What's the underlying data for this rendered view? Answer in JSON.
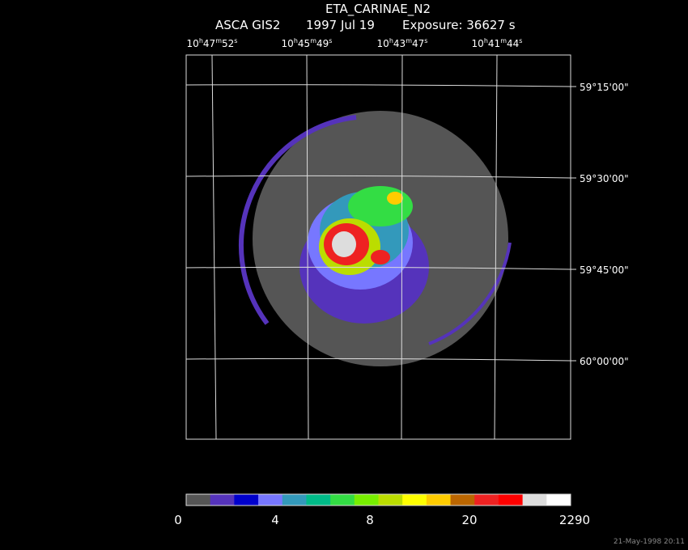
{
  "header": {
    "title": "ETA_CARINAE_N2",
    "instrument": "ASCA GIS2",
    "date": "1997 Jul 19",
    "exposure": "Exposure: 36627 s"
  },
  "ra_labels": [
    [
      "10",
      "h",
      "47",
      "m",
      "52",
      "s"
    ],
    [
      "10",
      "h",
      "45",
      "m",
      "49",
      "s"
    ],
    [
      "10",
      "h",
      "43",
      "m",
      "47",
      "s"
    ],
    [
      "10",
      "h",
      "41",
      "m",
      "44",
      "s"
    ]
  ],
  "dec_labels": [
    "59°15'00\"",
    "59°30'00\"",
    "59°45'00\"",
    "60°00'00\""
  ],
  "colorbar": {
    "colors": [
      "#555555",
      "#5533bb",
      "#0000cc",
      "#7777ff",
      "#3399bb",
      "#00bb88",
      "#33dd44",
      "#77ee00",
      "#bbdd00",
      "#ffff00",
      "#ffcc00",
      "#bb6600",
      "#ee2222",
      "#ff0000",
      "#dddddd",
      "#ffffff"
    ],
    "labels": [
      "0",
      "4",
      "8",
      "20",
      "2290"
    ]
  },
  "footer": {
    "timestamp": "21-May-1998 20:11"
  }
}
